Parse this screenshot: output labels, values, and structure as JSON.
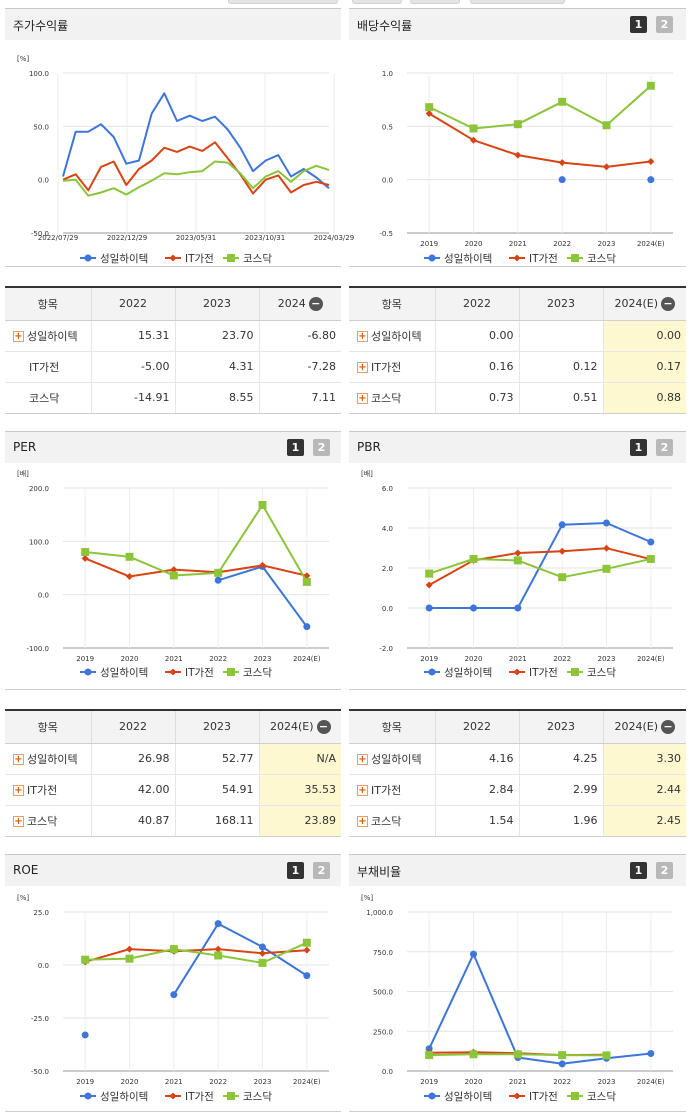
{
  "series_colors": {
    "성일하이텍": "#3d75d9",
    "IT가전": "#d84414",
    "코스닥": "#8cc43a"
  },
  "series_markers": {
    "성일하이텍": "circle",
    "IT가전": "diamond",
    "코스닥": "square"
  },
  "icons": {
    "plus": "plus-icon",
    "minus": "minus-icon"
  },
  "chart_data": [
    {
      "type": "line",
      "title": "주가수익률",
      "unit": "[%]",
      "y_ticks": [
        "100.0",
        "50.0",
        "0.0",
        "-50.0"
      ],
      "ylim": [
        -50,
        100
      ],
      "x_tick_labels": [
        "2022/07/29",
        "2022/12/29",
        "2023/05/31",
        "2023/10/31",
        "2024/03/29"
      ],
      "series": [
        {
          "name": "성일하이텍",
          "values": [
            3,
            45,
            45,
            52,
            40,
            15,
            18,
            62,
            81,
            55,
            60,
            55,
            59,
            47,
            30,
            8,
            18,
            23,
            3,
            10,
            2,
            -8
          ]
        },
        {
          "name": "IT가전",
          "values": [
            0,
            5,
            -10,
            12,
            17,
            -5,
            10,
            18,
            30,
            26,
            31,
            27,
            35,
            20,
            5,
            -13,
            0,
            4,
            -12,
            -5,
            -2,
            -5
          ]
        },
        {
          "name": "코스닥",
          "values": [
            -1,
            0,
            -15,
            -12,
            -8,
            -14,
            -7,
            -1,
            6,
            5,
            7,
            8,
            17,
            16,
            6,
            -8,
            3,
            8,
            -2,
            8,
            13,
            9
          ]
        }
      ]
    },
    {
      "type": "line",
      "title": "배당수익률",
      "unit": "",
      "y_ticks": [
        "1.0",
        "0.5",
        "0.0",
        "-0.5"
      ],
      "ylim": [
        -0.5,
        1.0
      ],
      "categories": [
        "2019",
        "2020",
        "2021",
        "2022",
        "2023",
        "2024(E)"
      ],
      "series": [
        {
          "name": "성일하이텍",
          "values": [
            null,
            null,
            null,
            0.0,
            null,
            0.0
          ]
        },
        {
          "name": "IT가전",
          "values": [
            0.62,
            0.37,
            0.23,
            0.16,
            0.12,
            0.17
          ]
        },
        {
          "name": "코스닥",
          "values": [
            0.68,
            0.48,
            0.52,
            0.73,
            0.51,
            0.88
          ]
        }
      ]
    },
    {
      "type": "line",
      "title": "PER",
      "unit": "[배]",
      "y_ticks": [
        "200.0",
        "100.0",
        "0.0",
        "-100.0"
      ],
      "ylim": [
        -100,
        200
      ],
      "categories": [
        "2019",
        "2020",
        "2021",
        "2022",
        "2023",
        "2024(E)"
      ],
      "series": [
        {
          "name": "성일하이텍",
          "values": [
            null,
            null,
            null,
            26.98,
            52.77,
            -60
          ]
        },
        {
          "name": "IT가전",
          "values": [
            68,
            34,
            47,
            42.0,
            54.91,
            35.53
          ]
        },
        {
          "name": "코스닥",
          "values": [
            80,
            71,
            36,
            40.87,
            168.11,
            23.89
          ]
        }
      ]
    },
    {
      "type": "line",
      "title": "PBR",
      "unit": "[배]",
      "y_ticks": [
        "6.0",
        "4.0",
        "2.0",
        "0.0",
        "-2.0"
      ],
      "ylim": [
        -2,
        6
      ],
      "categories": [
        "2019",
        "2020",
        "2021",
        "2022",
        "2023",
        "2024(E)"
      ],
      "series": [
        {
          "name": "성일하이텍",
          "values": [
            0.0,
            0.0,
            0.0,
            4.16,
            4.25,
            3.3
          ]
        },
        {
          "name": "IT가전",
          "values": [
            1.15,
            2.38,
            2.75,
            2.84,
            2.99,
            2.44
          ]
        },
        {
          "name": "코스닥",
          "values": [
            1.72,
            2.45,
            2.38,
            1.54,
            1.96,
            2.45
          ]
        }
      ]
    },
    {
      "type": "line",
      "title": "ROE",
      "unit": "[%]",
      "y_ticks": [
        "25.0",
        "0.0",
        "-25.0",
        "-50.0"
      ],
      "ylim": [
        -50,
        25
      ],
      "categories": [
        "2019",
        "2020",
        "2021",
        "2022",
        "2023",
        "2024(E)"
      ],
      "series": [
        {
          "name": "성일하이텍",
          "values": [
            -33,
            null,
            -14,
            19.5,
            8.5,
            -5
          ]
        },
        {
          "name": "IT가전",
          "values": [
            1.5,
            7.5,
            6.5,
            7.5,
            5.5,
            7.0
          ]
        },
        {
          "name": "코스닥",
          "values": [
            2.5,
            3.0,
            7.5,
            4.5,
            1.0,
            10.5
          ]
        }
      ]
    },
    {
      "type": "line",
      "title": "부채비율",
      "unit": "[%]",
      "y_ticks": [
        "1,000.0",
        "750.0",
        "500.0",
        "250.0",
        "0.0"
      ],
      "ylim": [
        0,
        1000
      ],
      "categories": [
        "2019",
        "2020",
        "2021",
        "2022",
        "2023",
        "2024(E)"
      ],
      "series": [
        {
          "name": "성일하이텍",
          "values": [
            140,
            735,
            85,
            45,
            80,
            110
          ]
        },
        {
          "name": "IT가전",
          "values": [
            115,
            118,
            112,
            100,
            102,
            null
          ]
        },
        {
          "name": "코스닥",
          "values": [
            100,
            105,
            105,
            100,
            98,
            null
          ]
        }
      ]
    }
  ],
  "tables": {
    "stock": {
      "headers": [
        "항목",
        "2022",
        "2023",
        "2024"
      ],
      "rows": [
        {
          "label": "성일하이텍",
          "v1": "15.31",
          "v2": "23.70",
          "v3": "-6.80"
        },
        {
          "label": "IT가전",
          "v1": "-5.00",
          "v2": "4.31",
          "v3": "-7.28"
        },
        {
          "label": "코스닥",
          "v1": "-14.91",
          "v2": "8.55",
          "v3": "7.11"
        }
      ]
    },
    "dividend": {
      "headers": [
        "항목",
        "2022",
        "2023",
        "2024(E)"
      ],
      "rows": [
        {
          "label": "성일하이텍",
          "v1": "0.00",
          "v2": "",
          "v3": "0.00"
        },
        {
          "label": "IT가전",
          "v1": "0.16",
          "v2": "0.12",
          "v3": "0.17"
        },
        {
          "label": "코스닥",
          "v1": "0.73",
          "v2": "0.51",
          "v3": "0.88"
        }
      ]
    },
    "per": {
      "headers": [
        "항목",
        "2022",
        "2023",
        "2024(E)"
      ],
      "rows": [
        {
          "label": "성일하이텍",
          "v1": "26.98",
          "v2": "52.77",
          "v3": "N/A"
        },
        {
          "label": "IT가전",
          "v1": "42.00",
          "v2": "54.91",
          "v3": "35.53"
        },
        {
          "label": "코스닥",
          "v1": "40.87",
          "v2": "168.11",
          "v3": "23.89"
        }
      ]
    },
    "pbr": {
      "headers": [
        "항목",
        "2022",
        "2023",
        "2024(E)"
      ],
      "rows": [
        {
          "label": "성일하이텍",
          "v1": "4.16",
          "v2": "4.25",
          "v3": "3.30"
        },
        {
          "label": "IT가전",
          "v1": "2.84",
          "v2": "2.99",
          "v3": "2.44"
        },
        {
          "label": "코스닥",
          "v1": "1.54",
          "v2": "1.96",
          "v3": "2.45"
        }
      ]
    }
  },
  "buttons": {
    "one": "1",
    "two": "2"
  }
}
